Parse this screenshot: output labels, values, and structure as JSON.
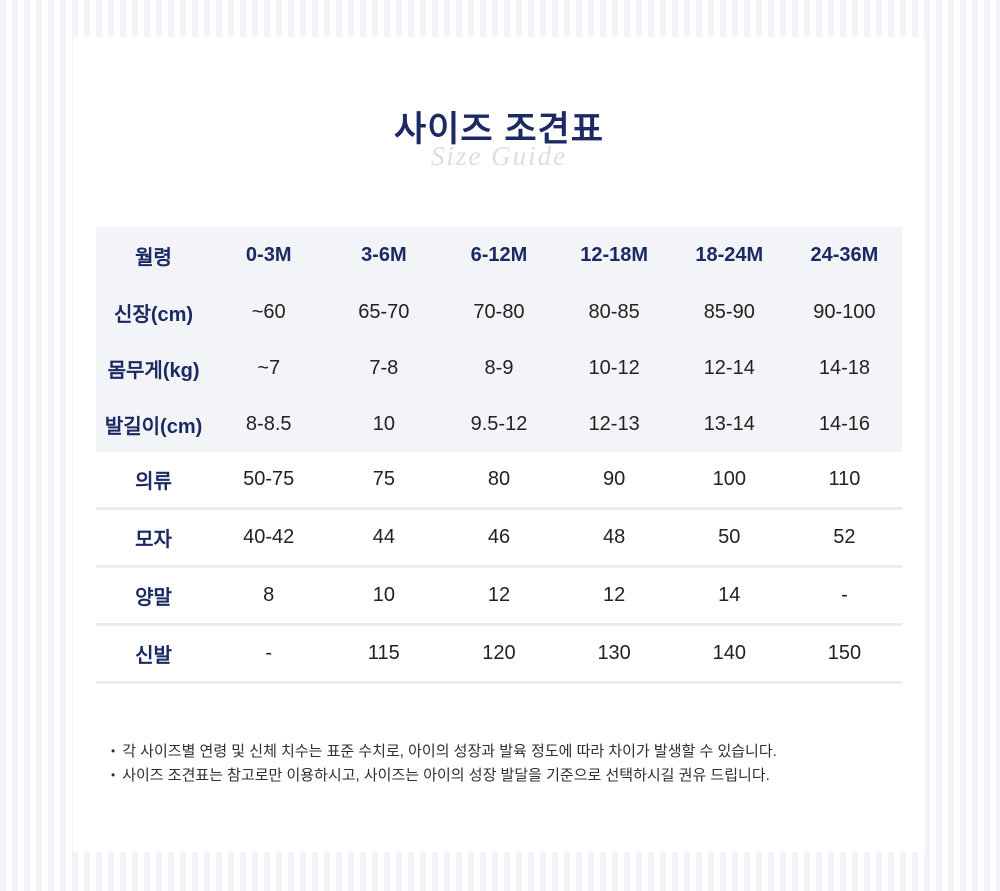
{
  "header": {
    "title": "사이즈 조견표",
    "subtitle": "Size Guide"
  },
  "table": {
    "columns": [
      "월령",
      "0-3M",
      "3-6M",
      "6-12M",
      "12-18M",
      "18-24M",
      "24-36M"
    ],
    "rows": [
      {
        "label": "신장(cm)",
        "values": [
          "~60",
          "65-70",
          "70-80",
          "80-85",
          "85-90",
          "90-100"
        ]
      },
      {
        "label": "몸무게(kg)",
        "values": [
          "~7",
          "7-8",
          "8-9",
          "10-12",
          "12-14",
          "14-18"
        ]
      },
      {
        "label": "발길이(cm)",
        "values": [
          "8-8.5",
          "10",
          "9.5-12",
          "12-13",
          "13-14",
          "14-16"
        ]
      },
      {
        "label": "의류",
        "values": [
          "50-75",
          "75",
          "80",
          "90",
          "100",
          "110"
        ]
      },
      {
        "label": "모자",
        "values": [
          "40-42",
          "44",
          "46",
          "48",
          "50",
          "52"
        ]
      },
      {
        "label": "양말",
        "values": [
          "8",
          "10",
          "12",
          "12",
          "14",
          "-"
        ]
      },
      {
        "label": "신발",
        "values": [
          "-",
          "115",
          "120",
          "130",
          "140",
          "150"
        ]
      }
    ]
  },
  "notes": [
    "각 사이즈별 연령 및 신체 치수는 표준 수치로, 아이의 성장과 발육 정도에 따라 차이가 발생할 수 있습니다.",
    "사이즈 조견표는 참고로만 이용하시고, 사이즈는 아이의 성장 발달을 기준으로 선택하시길 권유 드립니다."
  ],
  "colors": {
    "navy": "#1c2a64",
    "shaded_row_bg": "#f3f4f8",
    "separator": "#ebecf0",
    "background_stripe": "#f2f3f8",
    "subtitle_gray": "#dcdde1",
    "data_text": "#222222"
  }
}
